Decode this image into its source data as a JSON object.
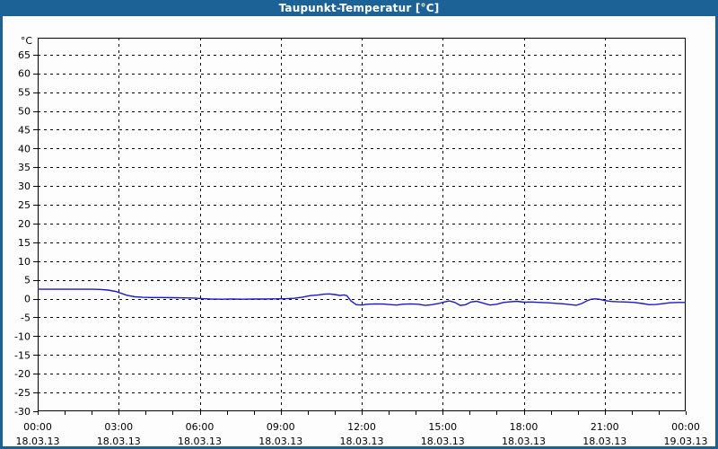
{
  "window": {
    "title": "Taupunkt-Temperatur [°C]"
  },
  "colors": {
    "titlebar": "#1d6296",
    "frame": "#1d6296",
    "background": "#fdfdfd",
    "plot_background": "#fdfdfd",
    "axis": "#000000",
    "grid": "#000000",
    "line": "#1a1ac8"
  },
  "chart_data": {
    "type": "line",
    "title": "Taupunkt-Temperatur [°C]",
    "xlabel": "",
    "ylabel": "°C",
    "y_unit_label": "°C",
    "ylim": [
      -30,
      69.5
    ],
    "xlim_hours": [
      0,
      24
    ],
    "grid": "dashed",
    "legend_position": "none",
    "y_ticks": [
      65,
      60,
      55,
      50,
      45,
      40,
      35,
      30,
      25,
      20,
      15,
      10,
      5,
      0,
      -5,
      -10,
      -15,
      -20,
      -25,
      -30
    ],
    "x_minor_tick_every_hours": 1,
    "x_major_every_hours": 3,
    "x_ticks": [
      {
        "hour": 0,
        "time": "00:00",
        "date": "18.03.13"
      },
      {
        "hour": 3,
        "time": "03:00",
        "date": "18.03.13"
      },
      {
        "hour": 6,
        "time": "06:00",
        "date": "18.03.13"
      },
      {
        "hour": 9,
        "time": "09:00",
        "date": "18.03.13"
      },
      {
        "hour": 12,
        "time": "12:00",
        "date": "18.03.13"
      },
      {
        "hour": 15,
        "time": "15:00",
        "date": "18.03.13"
      },
      {
        "hour": 18,
        "time": "18:00",
        "date": "18.03.13"
      },
      {
        "hour": 21,
        "time": "21:00",
        "date": "18.03.13"
      },
      {
        "hour": 24,
        "time": "00:00",
        "date": "19.03.13"
      }
    ],
    "series": [
      {
        "name": "Taupunkt-Temperatur",
        "color": "#1a1ac8",
        "points": [
          [
            0,
            2.5
          ],
          [
            0.5,
            2.5
          ],
          [
            1,
            2.5
          ],
          [
            1.5,
            2.5
          ],
          [
            2,
            2.5
          ],
          [
            2.3,
            2.45
          ],
          [
            2.6,
            2.3
          ],
          [
            2.9,
            1.9
          ],
          [
            3.1,
            1.4
          ],
          [
            3.3,
            0.9
          ],
          [
            3.6,
            0.5
          ],
          [
            3.9,
            0.35
          ],
          [
            4.2,
            0.3
          ],
          [
            4.6,
            0.3
          ],
          [
            5,
            0.25
          ],
          [
            5.4,
            0.2
          ],
          [
            5.8,
            0.15
          ],
          [
            6.1,
            0.0
          ],
          [
            6.4,
            -0.1
          ],
          [
            6.8,
            -0.15
          ],
          [
            7.2,
            -0.1
          ],
          [
            7.6,
            -0.15
          ],
          [
            8,
            -0.1
          ],
          [
            8.4,
            -0.1
          ],
          [
            8.8,
            -0.05
          ],
          [
            9.2,
            0.0
          ],
          [
            9.5,
            0.1
          ],
          [
            9.8,
            0.4
          ],
          [
            10.1,
            0.8
          ],
          [
            10.4,
            1.0
          ],
          [
            10.6,
            1.2
          ],
          [
            10.8,
            1.25
          ],
          [
            11,
            1.1
          ],
          [
            11.2,
            0.85
          ],
          [
            11.35,
            1.0
          ],
          [
            11.45,
            0.8
          ],
          [
            11.6,
            -0.6
          ],
          [
            11.8,
            -1.6
          ],
          [
            12,
            -1.7
          ],
          [
            12.2,
            -1.5
          ],
          [
            12.5,
            -1.4
          ],
          [
            12.8,
            -1.45
          ],
          [
            13.1,
            -1.6
          ],
          [
            13.3,
            -1.7
          ],
          [
            13.5,
            -1.5
          ],
          [
            13.8,
            -1.4
          ],
          [
            14.1,
            -1.5
          ],
          [
            14.35,
            -1.8
          ],
          [
            14.6,
            -1.6
          ],
          [
            14.85,
            -1.3
          ],
          [
            15.05,
            -0.9
          ],
          [
            15.25,
            -0.6
          ],
          [
            15.45,
            -1.0
          ],
          [
            15.65,
            -1.8
          ],
          [
            15.85,
            -1.6
          ],
          [
            16.05,
            -0.9
          ],
          [
            16.25,
            -0.7
          ],
          [
            16.5,
            -1.2
          ],
          [
            16.75,
            -1.7
          ],
          [
            17,
            -1.5
          ],
          [
            17.25,
            -1.0
          ],
          [
            17.5,
            -0.85
          ],
          [
            17.75,
            -0.7
          ],
          [
            18,
            -0.95
          ],
          [
            18.3,
            -0.9
          ],
          [
            18.6,
            -1.0
          ],
          [
            18.9,
            -1.1
          ],
          [
            19.2,
            -1.25
          ],
          [
            19.5,
            -1.4
          ],
          [
            19.75,
            -1.6
          ],
          [
            19.95,
            -1.75
          ],
          [
            20.15,
            -1.3
          ],
          [
            20.35,
            -0.55
          ],
          [
            20.5,
            -0.15
          ],
          [
            20.65,
            -0.05
          ],
          [
            20.8,
            -0.15
          ],
          [
            21,
            -0.5
          ],
          [
            21.25,
            -0.75
          ],
          [
            21.5,
            -0.85
          ],
          [
            21.8,
            -0.9
          ],
          [
            22.1,
            -1.0
          ],
          [
            22.4,
            -1.3
          ],
          [
            22.65,
            -1.6
          ],
          [
            22.9,
            -1.55
          ],
          [
            23.15,
            -1.35
          ],
          [
            23.4,
            -1.1
          ],
          [
            23.7,
            -1.0
          ],
          [
            24,
            -1.0
          ]
        ]
      }
    ]
  }
}
